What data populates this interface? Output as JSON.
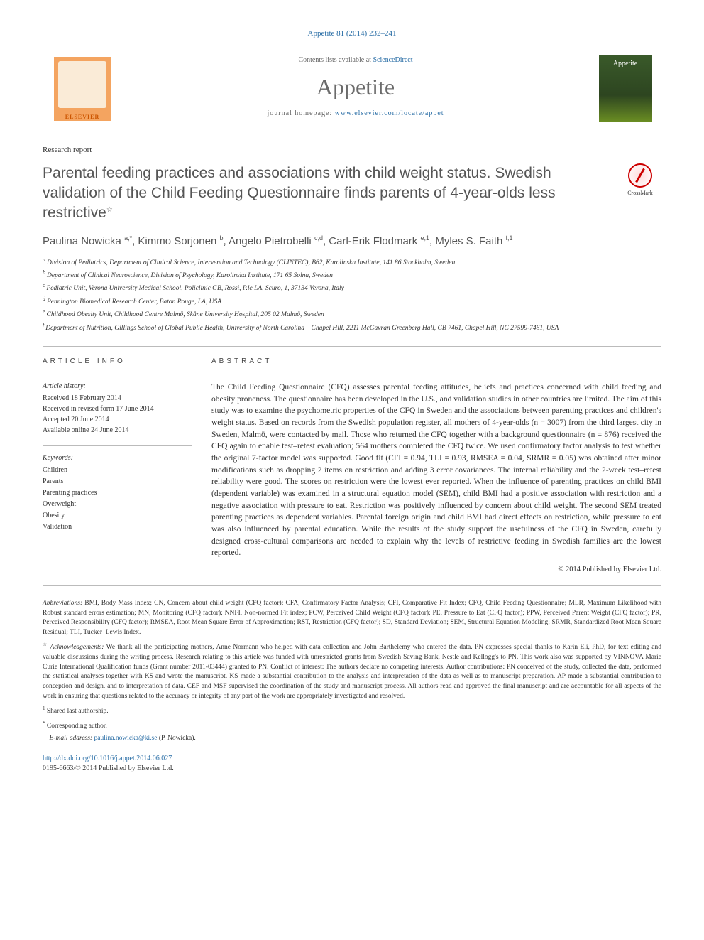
{
  "citation": {
    "journal": "Appetite",
    "volume": "81",
    "year": "2014",
    "pages": "232–241",
    "full": "Appetite 81 (2014) 232–241"
  },
  "header": {
    "contents_prefix": "Contents lists available at ",
    "contents_link": "ScienceDirect",
    "journal_name": "Appetite",
    "homepage_prefix": "journal homepage: ",
    "homepage_url": "www.elsevier.com/locate/appet",
    "publisher_logo_text": "ELSEVIER",
    "cover_text": "Appetite"
  },
  "article": {
    "type": "Research report",
    "title": "Parental feeding practices and associations with child weight status. Swedish validation of the Child Feeding Questionnaire finds parents of 4-year-olds less restrictive",
    "title_note_marker": "☆",
    "crossmark_label": "CrossMark"
  },
  "authors_line": "Paulina Nowicka a,*, Kimmo Sorjonen b, Angelo Pietrobelli c,d, Carl-Erik Flodmark e,1, Myles S. Faith f,1",
  "authors": [
    {
      "name": "Paulina Nowicka",
      "sup": "a,*"
    },
    {
      "name": "Kimmo Sorjonen",
      "sup": "b"
    },
    {
      "name": "Angelo Pietrobelli",
      "sup": "c,d"
    },
    {
      "name": "Carl-Erik Flodmark",
      "sup": "e,1"
    },
    {
      "name": "Myles S. Faith",
      "sup": "f,1"
    }
  ],
  "affiliations": [
    {
      "key": "a",
      "text": "Division of Pediatrics, Department of Clinical Science, Intervention and Technology (CLINTEC), B62, Karolinska Institute, 141 86 Stockholm, Sweden"
    },
    {
      "key": "b",
      "text": "Department of Clinical Neuroscience, Division of Psychology, Karolinska Institute, 171 65 Solna, Sweden"
    },
    {
      "key": "c",
      "text": "Pediatric Unit, Verona University Medical School, Policlinic GB, Rossi, P.le LA, Scuro, 1, 37134 Verona, Italy"
    },
    {
      "key": "d",
      "text": "Pennington Biomedical Research Center, Baton Rouge, LA, USA"
    },
    {
      "key": "e",
      "text": "Childhood Obesity Unit, Childhood Centre Malmö, Skåne University Hospital, 205 02 Malmö, Sweden"
    },
    {
      "key": "f",
      "text": "Department of Nutrition, Gillings School of Global Public Health, University of North Carolina – Chapel Hill, 2211 McGavran Greenberg Hall, CB 7461, Chapel Hill, NC 27599-7461, USA"
    }
  ],
  "article_info": {
    "heading": "ARTICLE INFO",
    "history_label": "Article history:",
    "history": [
      "Received 18 February 2014",
      "Received in revised form 17 June 2014",
      "Accepted 20 June 2014",
      "Available online 24 June 2014"
    ],
    "keywords_label": "Keywords:",
    "keywords": [
      "Children",
      "Parents",
      "Parenting practices",
      "Overweight",
      "Obesity",
      "Validation"
    ]
  },
  "abstract": {
    "heading": "ABSTRACT",
    "text": "The Child Feeding Questionnaire (CFQ) assesses parental feeding attitudes, beliefs and practices concerned with child feeding and obesity proneness. The questionnaire has been developed in the U.S., and validation studies in other countries are limited. The aim of this study was to examine the psychometric properties of the CFQ in Sweden and the associations between parenting practices and children's weight status. Based on records from the Swedish population register, all mothers of 4-year-olds (n = 3007) from the third largest city in Sweden, Malmö, were contacted by mail. Those who returned the CFQ together with a background questionnaire (n = 876) received the CFQ again to enable test–retest evaluation; 564 mothers completed the CFQ twice. We used confirmatory factor analysis to test whether the original 7-factor model was supported. Good fit (CFI = 0.94, TLI = 0.93, RMSEA = 0.04, SRMR = 0.05) was obtained after minor modifications such as dropping 2 items on restriction and adding 3 error covariances. The internal reliability and the 2-week test–retest reliability were good. The scores on restriction were the lowest ever reported. When the influence of parenting practices on child BMI (dependent variable) was examined in a structural equation model (SEM), child BMI had a positive association with restriction and a negative association with pressure to eat. Restriction was positively influenced by concern about child weight. The second SEM treated parenting practices as dependent variables. Parental foreign origin and child BMI had direct effects on restriction, while pressure to eat was also influenced by parental education. While the results of the study support the usefulness of the CFQ in Sweden, carefully designed cross-cultural comparisons are needed to explain why the levels of restrictive feeding in Swedish families are the lowest reported.",
    "copyright": "© 2014 Published by Elsevier Ltd."
  },
  "footnotes": {
    "abbreviations_label": "Abbreviations:",
    "abbreviations_text": "BMI, Body Mass Index; CN, Concern about child weight (CFQ factor); CFA, Confirmatory Factor Analysis; CFI, Comparative Fit Index; CFQ, Child Feeding Questionnaire; MLR, Maximum Likelihood with Robust standard errors estimation; MN, Monitoring (CFQ factor); NNFI, Non-normed Fit index; PCW, Perceived Child Weight (CFQ factor); PE, Pressure to Eat (CFQ factor); PPW, Perceived Parent Weight (CFQ factor); PR, Perceived Responsibility (CFQ factor); RMSEA, Root Mean Square Error of Approximation; RST, Restriction (CFQ factor); SD, Standard Deviation; SEM, Structural Equation Modeling; SRMR, Standardized Root Mean Square Residual; TLI, Tucker–Lewis Index.",
    "ack_marker": "☆",
    "ack_label": "Acknowledgements:",
    "ack_text": "We thank all the participating mothers, Anne Normann who helped with data collection and John Barthelemy who entered the data. PN expresses special thanks to Karin Eli, PhD, for text editing and valuable discussions during the writing process. Research relating to this article was funded with unrestricted grants from Swedish Saving Bank, Nestle and Kellogg's to PN. This work also was supported by VINNOVA Marie Curie International Qualification funds (Grant number 2011-03444) granted to PN. Conflict of interest: The authors declare no competing interests. Author contributions: PN conceived of the study, collected the data, performed the statistical analyses together with KS and wrote the manuscript. KS made a substantial contribution to the analysis and interpretation of the data as well as to manuscript preparation. AP made a substantial contribution to conception and design, and to interpretation of data. CEF and MSF supervised the coordination of the study and manuscript process. All authors read and approved the final manuscript and are accountable for all aspects of the work in ensuring that questions related to the accuracy or integrity of any part of the work are appropriately investigated and resolved.",
    "shared_marker": "1",
    "shared_text": "Shared last authorship.",
    "corr_marker": "*",
    "corr_text": "Corresponding author.",
    "email_label": "E-mail address:",
    "email": "paulina.nowicka@ki.se",
    "email_person": "(P. Nowicka)."
  },
  "doi": {
    "url": "http://dx.doi.org/10.1016/j.appet.2014.06.027",
    "issn_line": "0195-6663/© 2014 Published by Elsevier Ltd."
  },
  "colors": {
    "link": "#2a6ea6",
    "text": "#333333",
    "heading_gray": "#555555",
    "border": "#cccccc",
    "rule": "#bbbbbb"
  },
  "typography": {
    "body_font": "Georgia, 'Times New Roman', serif",
    "title_font": "'Lucida Sans', Arial, sans-serif",
    "body_size_pt": 9,
    "title_size_pt": 16,
    "journal_name_size_pt": 24
  }
}
